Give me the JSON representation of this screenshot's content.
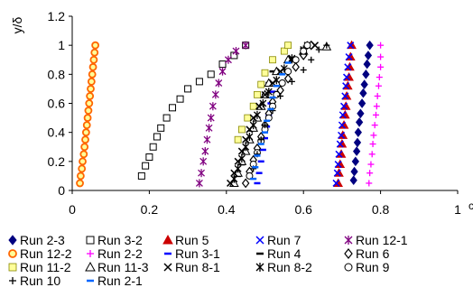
{
  "chart_data": {
    "type": "scatter",
    "title": "",
    "ylabel": "y/δ",
    "xlabel": "",
    "clipped_right_label": "c",
    "xlim": [
      0,
      1
    ],
    "ylim": [
      0,
      1.2
    ],
    "x_ticks": [
      "0",
      "0.2",
      "0.4",
      "0.6",
      "0.8",
      "1"
    ],
    "y_ticks": [
      "0",
      "0.2",
      "0.4",
      "0.6",
      "0.8",
      "1",
      "1.2"
    ],
    "grid": false,
    "legend_position": "bottom",
    "series": [
      {
        "name": "Run 2-3",
        "marker": "diamond-filled",
        "color": "#000080",
        "points": [
          [
            0.73,
            0.07
          ],
          [
            0.732,
            0.13
          ],
          [
            0.735,
            0.2
          ],
          [
            0.738,
            0.27
          ],
          [
            0.74,
            0.33
          ],
          [
            0.742,
            0.4
          ],
          [
            0.745,
            0.47
          ],
          [
            0.748,
            0.53
          ],
          [
            0.752,
            0.6
          ],
          [
            0.755,
            0.67
          ],
          [
            0.758,
            0.73
          ],
          [
            0.762,
            0.8
          ],
          [
            0.765,
            0.87
          ],
          [
            0.768,
            0.93
          ],
          [
            0.772,
            1.0
          ]
        ]
      },
      {
        "name": "Run 3-2",
        "marker": "square-open",
        "color": "#000000",
        "points": [
          [
            0.18,
            0.1
          ],
          [
            0.19,
            0.17
          ],
          [
            0.2,
            0.23
          ],
          [
            0.21,
            0.3
          ],
          [
            0.22,
            0.37
          ],
          [
            0.23,
            0.43
          ],
          [
            0.245,
            0.5
          ],
          [
            0.26,
            0.57
          ],
          [
            0.28,
            0.63
          ],
          [
            0.3,
            0.7
          ],
          [
            0.33,
            0.75
          ],
          [
            0.36,
            0.8
          ],
          [
            0.39,
            0.87
          ],
          [
            0.42,
            0.93
          ],
          [
            0.45,
            1.0
          ]
        ]
      },
      {
        "name": "Run 5",
        "marker": "triangle-filled",
        "color": "#cc0000",
        "points": [
          [
            0.69,
            0.05
          ],
          [
            0.692,
            0.12
          ],
          [
            0.695,
            0.18
          ],
          [
            0.698,
            0.25
          ],
          [
            0.7,
            0.32
          ],
          [
            0.702,
            0.38
          ],
          [
            0.705,
            0.45
          ],
          [
            0.708,
            0.52
          ],
          [
            0.71,
            0.58
          ],
          [
            0.712,
            0.65
          ],
          [
            0.715,
            0.72
          ],
          [
            0.718,
            0.78
          ],
          [
            0.72,
            0.85
          ],
          [
            0.722,
            0.92
          ],
          [
            0.725,
            1.0
          ]
        ]
      },
      {
        "name": "Run 7",
        "marker": "x",
        "color": "#0000ff",
        "points": [
          [
            0.685,
            0.05
          ],
          [
            0.688,
            0.12
          ],
          [
            0.69,
            0.18
          ],
          [
            0.692,
            0.25
          ],
          [
            0.695,
            0.32
          ],
          [
            0.698,
            0.38
          ],
          [
            0.7,
            0.45
          ],
          [
            0.702,
            0.52
          ],
          [
            0.705,
            0.58
          ],
          [
            0.708,
            0.65
          ],
          [
            0.71,
            0.72
          ],
          [
            0.712,
            0.78
          ],
          [
            0.715,
            0.85
          ],
          [
            0.718,
            0.92
          ],
          [
            0.722,
            1.0
          ]
        ]
      },
      {
        "name": "Run 12-1",
        "marker": "asterisk",
        "color": "#800080",
        "points": [
          [
            0.33,
            0.05
          ],
          [
            0.335,
            0.12
          ],
          [
            0.34,
            0.2
          ],
          [
            0.345,
            0.27
          ],
          [
            0.35,
            0.35
          ],
          [
            0.355,
            0.43
          ],
          [
            0.36,
            0.5
          ],
          [
            0.365,
            0.58
          ],
          [
            0.372,
            0.66
          ],
          [
            0.38,
            0.74
          ],
          [
            0.39,
            0.82
          ],
          [
            0.405,
            0.9
          ],
          [
            0.425,
            0.96
          ],
          [
            0.45,
            1.0
          ]
        ]
      },
      {
        "name": "Run 12-2",
        "marker": "circle-open-thick",
        "color": "#ff6600",
        "points": [
          [
            0.02,
            0.05
          ],
          [
            0.022,
            0.1
          ],
          [
            0.025,
            0.15
          ],
          [
            0.027,
            0.2
          ],
          [
            0.03,
            0.25
          ],
          [
            0.032,
            0.3
          ],
          [
            0.034,
            0.35
          ],
          [
            0.036,
            0.4
          ],
          [
            0.038,
            0.45
          ],
          [
            0.04,
            0.5
          ],
          [
            0.042,
            0.55
          ],
          [
            0.044,
            0.6
          ],
          [
            0.046,
            0.65
          ],
          [
            0.048,
            0.7
          ],
          [
            0.05,
            0.75
          ],
          [
            0.052,
            0.8
          ],
          [
            0.054,
            0.85
          ],
          [
            0.056,
            0.9
          ],
          [
            0.058,
            0.95
          ],
          [
            0.06,
            1.0
          ]
        ]
      },
      {
        "name": "Run 2-2",
        "marker": "plus",
        "color": "#ff00ff",
        "points": [
          [
            0.77,
            0.05
          ],
          [
            0.772,
            0.12
          ],
          [
            0.775,
            0.18
          ],
          [
            0.778,
            0.25
          ],
          [
            0.78,
            0.32
          ],
          [
            0.782,
            0.38
          ],
          [
            0.785,
            0.45
          ],
          [
            0.788,
            0.52
          ],
          [
            0.79,
            0.58
          ],
          [
            0.792,
            0.65
          ],
          [
            0.795,
            0.72
          ],
          [
            0.797,
            0.78
          ],
          [
            0.8,
            0.85
          ],
          [
            0.8,
            0.92
          ],
          [
            0.8,
            1.0
          ]
        ]
      },
      {
        "name": "Run 3-1",
        "marker": "dash",
        "color": "#0000ff",
        "points": [
          [
            0.48,
            0.05
          ],
          [
            0.485,
            0.12
          ],
          [
            0.49,
            0.2
          ],
          [
            0.495,
            0.28
          ],
          [
            0.5,
            0.36
          ],
          [
            0.505,
            0.44
          ],
          [
            0.51,
            0.52
          ],
          [
            0.515,
            0.6
          ],
          [
            0.52,
            0.68
          ]
        ]
      },
      {
        "name": "Run 4",
        "marker": "dash",
        "color": "#000000",
        "points": [
          [
            0.43,
            0.1
          ],
          [
            0.44,
            0.18
          ],
          [
            0.45,
            0.26
          ],
          [
            0.46,
            0.34
          ],
          [
            0.47,
            0.42
          ],
          [
            0.48,
            0.5
          ],
          [
            0.49,
            0.58
          ],
          [
            0.5,
            0.66
          ],
          [
            0.51,
            0.74
          ],
          [
            0.52,
            0.82
          ]
        ]
      },
      {
        "name": "Run 6",
        "marker": "diamond-open",
        "color": "#000000",
        "points": [
          [
            0.45,
            0.05
          ],
          [
            0.46,
            0.13
          ],
          [
            0.47,
            0.21
          ],
          [
            0.48,
            0.29
          ],
          [
            0.49,
            0.37
          ],
          [
            0.5,
            0.45
          ],
          [
            0.51,
            0.53
          ],
          [
            0.52,
            0.61
          ],
          [
            0.54,
            0.69
          ],
          [
            0.56,
            0.77
          ],
          [
            0.58,
            0.85
          ],
          [
            0.6,
            0.93
          ],
          [
            0.62,
            1.0
          ]
        ]
      },
      {
        "name": "Run 11-2",
        "marker": "square-filled",
        "color": "#ffff99",
        "points": [
          [
            0.43,
            0.35
          ],
          [
            0.44,
            0.42
          ],
          [
            0.455,
            0.5
          ],
          [
            0.47,
            0.58
          ],
          [
            0.48,
            0.66
          ],
          [
            0.49,
            0.73
          ],
          [
            0.5,
            0.81
          ],
          [
            0.52,
            0.9
          ],
          [
            0.55,
            0.96
          ],
          [
            0.56,
            1.0
          ]
        ]
      },
      {
        "name": "Run 11-3",
        "marker": "triangle-open",
        "color": "#000000",
        "points": [
          [
            0.42,
            0.05
          ],
          [
            0.43,
            0.12
          ],
          [
            0.44,
            0.2
          ],
          [
            0.45,
            0.27
          ],
          [
            0.46,
            0.35
          ],
          [
            0.47,
            0.43
          ],
          [
            0.48,
            0.5
          ],
          [
            0.49,
            0.58
          ],
          [
            0.5,
            0.66
          ],
          [
            0.51,
            0.74
          ],
          [
            0.53,
            0.82
          ],
          [
            0.56,
            0.9
          ],
          [
            0.6,
            0.96
          ],
          [
            0.66,
            0.99
          ]
        ]
      },
      {
        "name": "Run 8-1",
        "marker": "x",
        "color": "#000000",
        "points": [
          [
            0.41,
            0.05
          ],
          [
            0.42,
            0.12
          ],
          [
            0.43,
            0.2
          ],
          [
            0.44,
            0.27
          ],
          [
            0.45,
            0.35
          ],
          [
            0.46,
            0.42
          ],
          [
            0.47,
            0.5
          ],
          [
            0.485,
            0.58
          ],
          [
            0.5,
            0.66
          ],
          [
            0.52,
            0.74
          ],
          [
            0.54,
            0.82
          ],
          [
            0.57,
            0.9
          ],
          [
            0.6,
            0.96
          ],
          [
            0.63,
            1.0
          ]
        ]
      },
      {
        "name": "Run 8-2",
        "marker": "asterisk",
        "color": "#000000",
        "points": [
          [
            0.42,
            0.08
          ],
          [
            0.43,
            0.15
          ],
          [
            0.44,
            0.22
          ],
          [
            0.45,
            0.3
          ],
          [
            0.46,
            0.37
          ],
          [
            0.47,
            0.45
          ],
          [
            0.48,
            0.52
          ],
          [
            0.495,
            0.6
          ],
          [
            0.51,
            0.68
          ],
          [
            0.53,
            0.76
          ],
          [
            0.55,
            0.84
          ],
          [
            0.57,
            0.91
          ],
          [
            0.6,
            0.97
          ],
          [
            0.61,
            1.0
          ]
        ]
      },
      {
        "name": "Run 9",
        "marker": "circle-open",
        "color": "#000000",
        "points": [
          [
            0.46,
            0.1
          ],
          [
            0.47,
            0.18
          ],
          [
            0.48,
            0.26
          ],
          [
            0.49,
            0.34
          ],
          [
            0.5,
            0.42
          ],
          [
            0.51,
            0.5
          ],
          [
            0.52,
            0.58
          ],
          [
            0.53,
            0.66
          ],
          [
            0.545,
            0.74
          ],
          [
            0.56,
            0.82
          ],
          [
            0.58,
            0.9
          ],
          [
            0.6,
            0.96
          ],
          [
            0.61,
            1.0
          ]
        ]
      },
      {
        "name": "Run 10",
        "marker": "plus",
        "color": "#000000",
        "points": [
          [
            0.47,
            0.15
          ],
          [
            0.48,
            0.25
          ],
          [
            0.49,
            0.35
          ],
          [
            0.5,
            0.45
          ],
          [
            0.52,
            0.55
          ],
          [
            0.54,
            0.65
          ],
          [
            0.57,
            0.75
          ],
          [
            0.6,
            0.83
          ],
          [
            0.62,
            0.9
          ],
          [
            0.64,
            0.97
          ],
          [
            0.66,
            1.0
          ]
        ]
      },
      {
        "name": "Run 2-1",
        "marker": "dash",
        "color": "#0066ff",
        "points": [
          [
            0.47,
            0.08
          ],
          [
            0.475,
            0.16
          ],
          [
            0.48,
            0.24
          ],
          [
            0.49,
            0.32
          ],
          [
            0.5,
            0.4
          ],
          [
            0.505,
            0.48
          ],
          [
            0.515,
            0.56
          ],
          [
            0.52,
            0.64
          ],
          [
            0.53,
            0.72
          ],
          [
            0.545,
            0.8
          ],
          [
            0.56,
            0.88
          ]
        ]
      }
    ]
  }
}
